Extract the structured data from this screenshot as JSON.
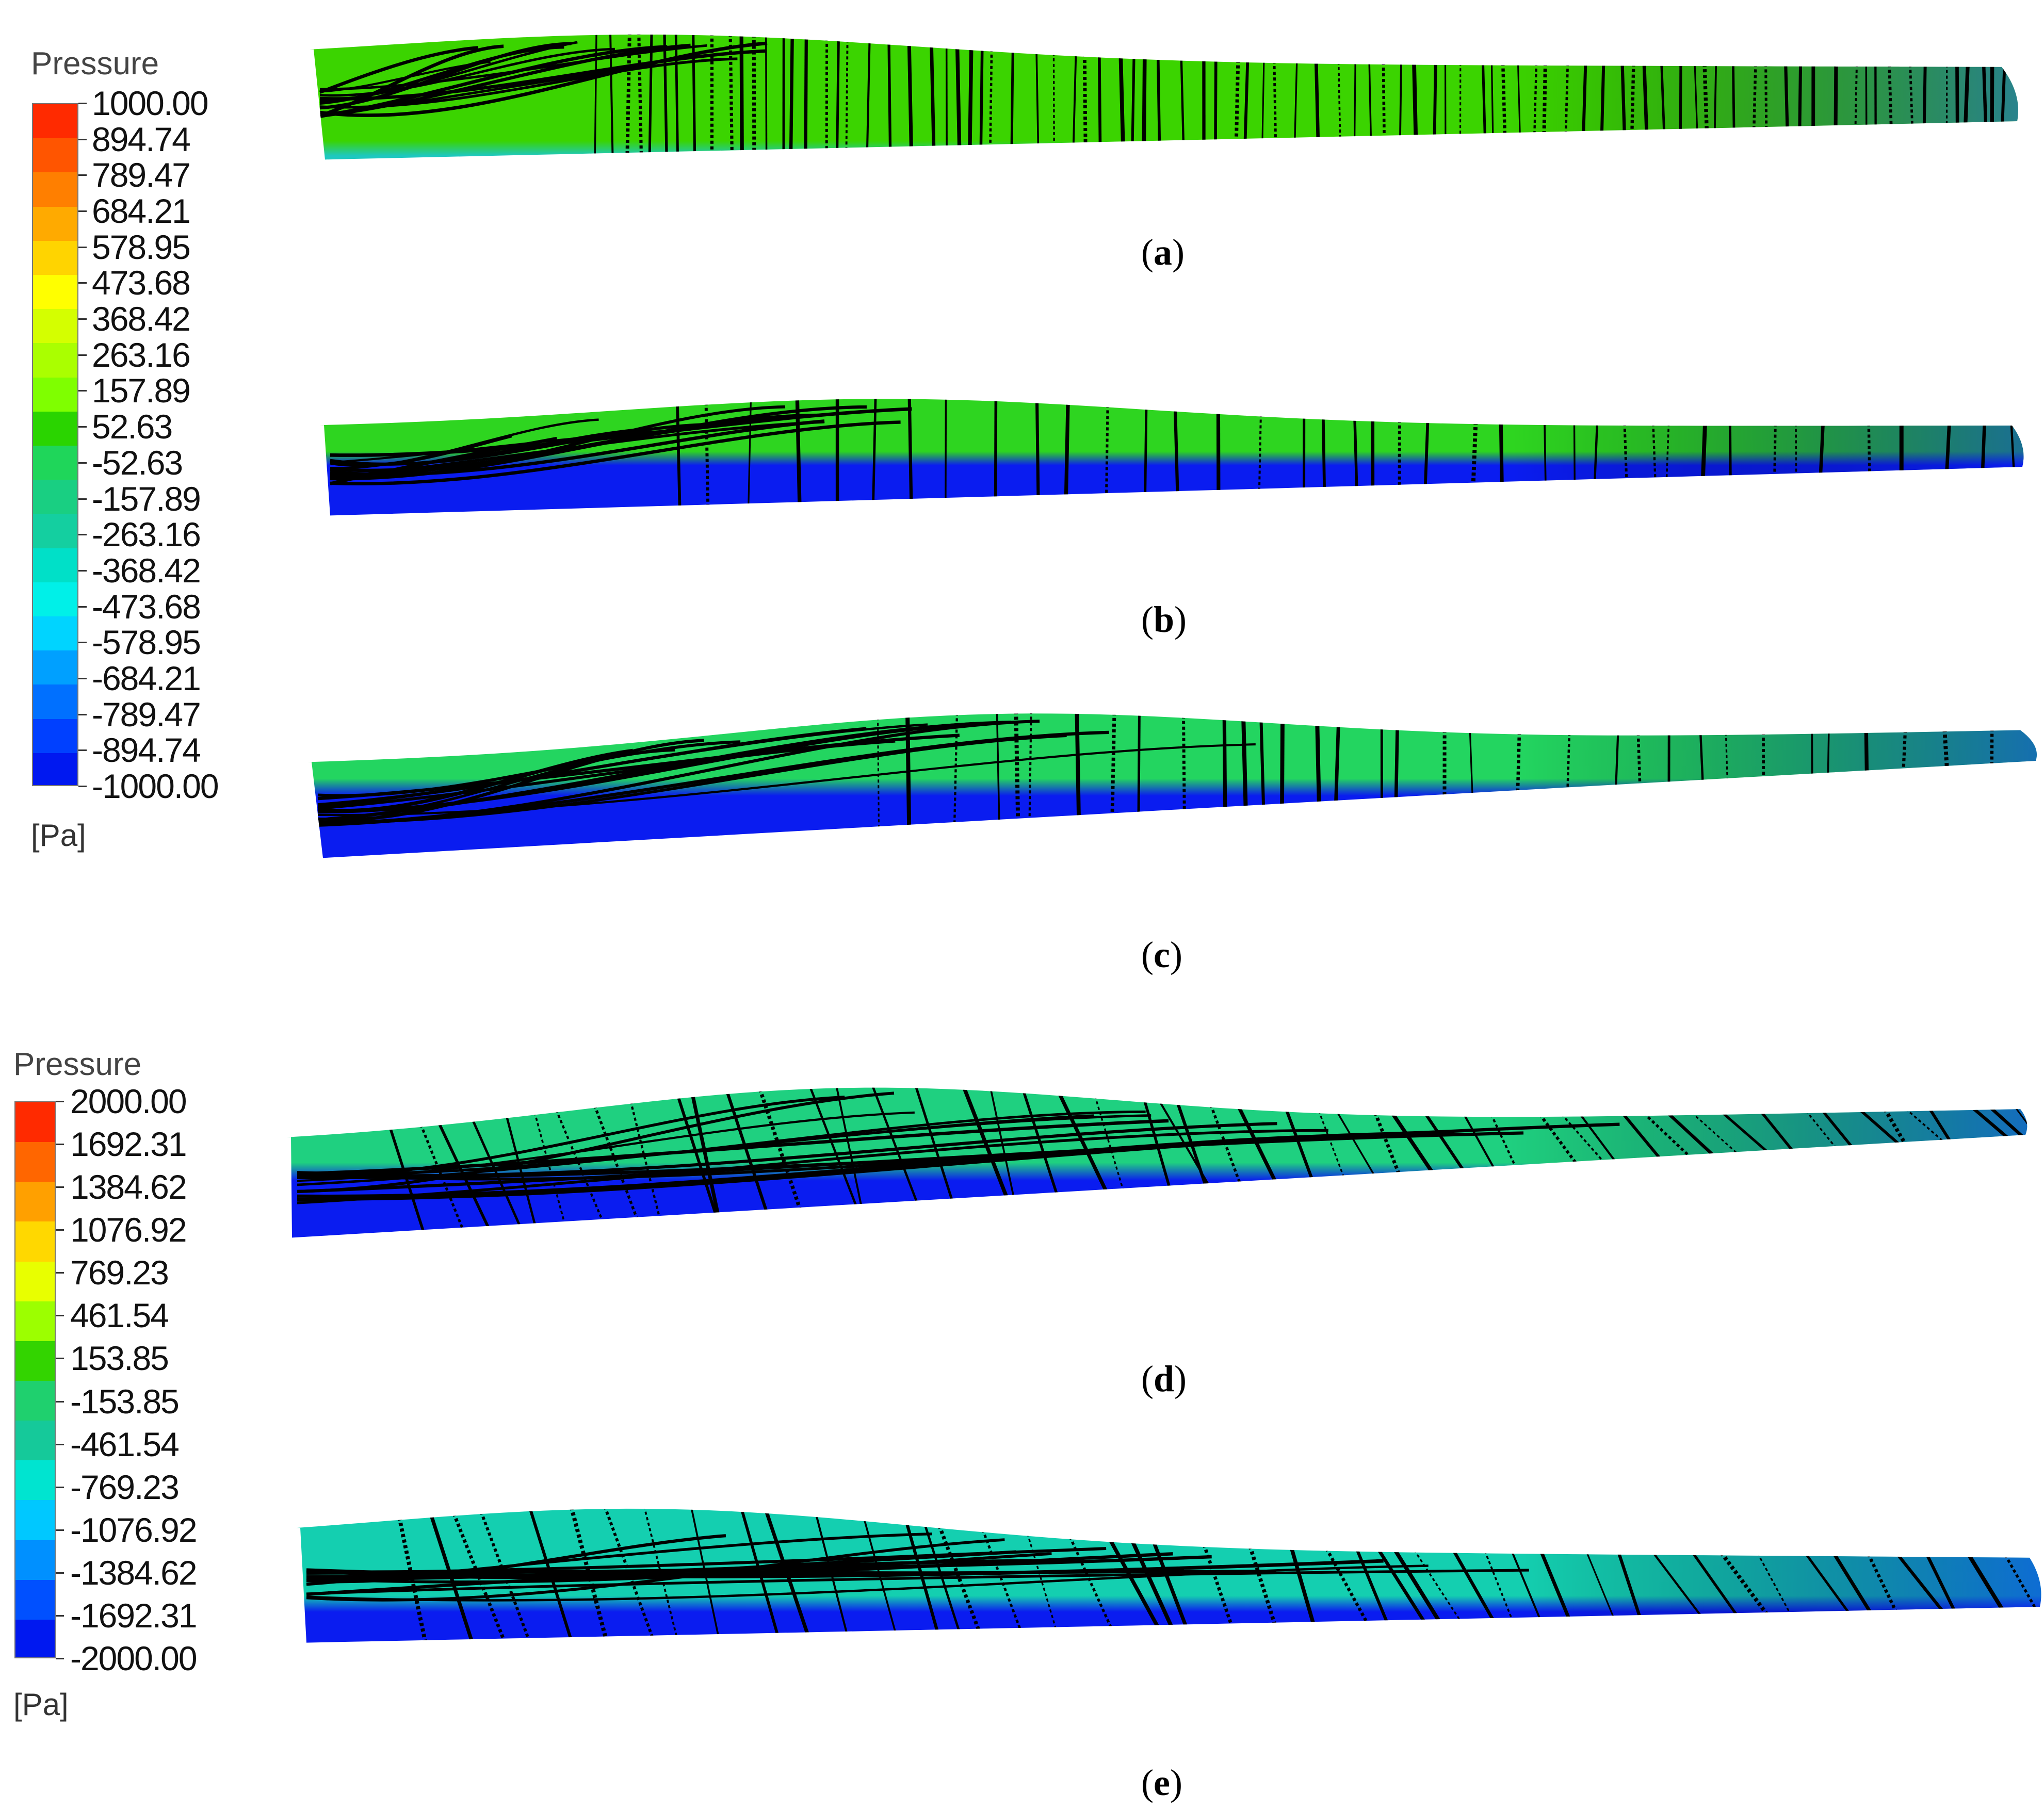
{
  "legends": [
    {
      "title": "Pressure",
      "unit": "[Pa]",
      "labels": [
        "1000.00",
        "894.74",
        "789.47",
        "684.21",
        "578.95",
        "473.68",
        "368.42",
        "263.16",
        "157.89",
        "52.63",
        "-52.63",
        "-157.89",
        "-263.16",
        "-368.42",
        "-473.68",
        "-578.95",
        "-684.21",
        "-789.47",
        "-894.74",
        "-1000.00"
      ],
      "colors": [
        "#ff2a00",
        "#ff5500",
        "#ff7f00",
        "#ffaa00",
        "#ffd400",
        "#ffff00",
        "#d4ff00",
        "#aaff00",
        "#7fff00",
        "#2ad400",
        "#1fd65a",
        "#19cf82",
        "#14cfa0",
        "#00e0c8",
        "#00f0e8",
        "#00d4ff",
        "#00a0ff",
        "#0070ff",
        "#0040ff",
        "#0018f0"
      ]
    },
    {
      "title": "Pressure",
      "unit": "[Pa]",
      "labels": [
        "2000.00",
        "1692.31",
        "1384.62",
        "1076.92",
        "769.23",
        "461.54",
        "153.85",
        "-153.85",
        "-461.54",
        "-769.23",
        "-1076.92",
        "-1384.62",
        "-1692.31",
        "-2000.00"
      ],
      "colors": [
        "#ff2a00",
        "#ff6600",
        "#ffa000",
        "#ffd800",
        "#e8ff00",
        "#9cff00",
        "#33d400",
        "#1fd06e",
        "#15c99a",
        "#00e4d0",
        "#00c8ff",
        "#0090ff",
        "#0050ff",
        "#0018f0"
      ]
    }
  ],
  "panels": [
    {
      "caption_letter": "a",
      "top_color": "#3bd400",
      "bottom_color": "#1ec8c0",
      "tip_color": "#1a40ff",
      "blue_share": 0.15
    },
    {
      "caption_letter": "b",
      "top_color": "#2ed520",
      "bottom_color": "#0a1cf0",
      "tip_color": "#0a1cf0",
      "blue_share": 0.55
    },
    {
      "caption_letter": "c",
      "top_color": "#23d560",
      "bottom_color": "#0a1cf0",
      "tip_color": "#0a1cf0",
      "blue_share": 0.55
    },
    {
      "caption_letter": "d",
      "top_color": "#1fd080",
      "bottom_color": "#0a1cf0",
      "tip_color": "#0a1cf0",
      "blue_share": 0.5
    },
    {
      "caption_letter": "e",
      "top_color": "#14cfb0",
      "bottom_color": "#0a1cf0",
      "tip_color": "#0a1cf0",
      "blue_share": 0.35
    }
  ]
}
